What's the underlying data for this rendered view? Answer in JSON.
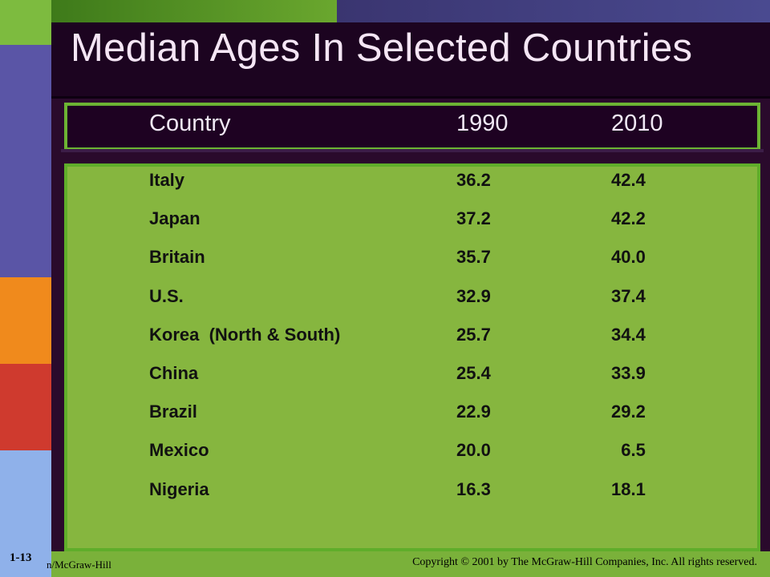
{
  "title": "Median Ages In Selected Countries",
  "table": {
    "headers": {
      "country": "Country",
      "y1990": "1990",
      "y2010": "2010"
    },
    "rows": [
      {
        "country": "Italy",
        "y1990": "36.2",
        "y2010": "42.4"
      },
      {
        "country": "Japan",
        "y1990": "37.2",
        "y2010": "42.2"
      },
      {
        "country": "Britain",
        "y1990": "35.7",
        "y2010": "40.0"
      },
      {
        "country": "U.S.",
        "y1990": "32.9",
        "y2010": "37.4"
      },
      {
        "country": "Korea  (North & South)",
        "y1990": "25.7",
        "y2010": "34.4"
      },
      {
        "country": "China",
        "y1990": "25.4",
        "y2010": "33.9"
      },
      {
        "country": "Brazil",
        "y1990": "22.9",
        "y2010": "29.2"
      },
      {
        "country": "Mexico",
        "y1990": "20.0",
        "y2010": "  6.5"
      },
      {
        "country": "Nigeria",
        "y1990": "16.3",
        "y2010": "18.1"
      }
    ]
  },
  "footer": {
    "slide_number": "1-13",
    "left_text": "n/McGraw-Hill",
    "copyright": "Copyright © 2001 by The McGraw-Hill Companies, Inc.  All rights reserved."
  },
  "colors": {
    "accent_green": "#86b63f",
    "border_green": "#5fad2a",
    "background_purple": "#2a0a2c",
    "bar_orange": "#f08a1c",
    "bar_red": "#cf3a2e",
    "bar_blue": "#8fb1ea",
    "bar_violet": "#5a55a6"
  }
}
